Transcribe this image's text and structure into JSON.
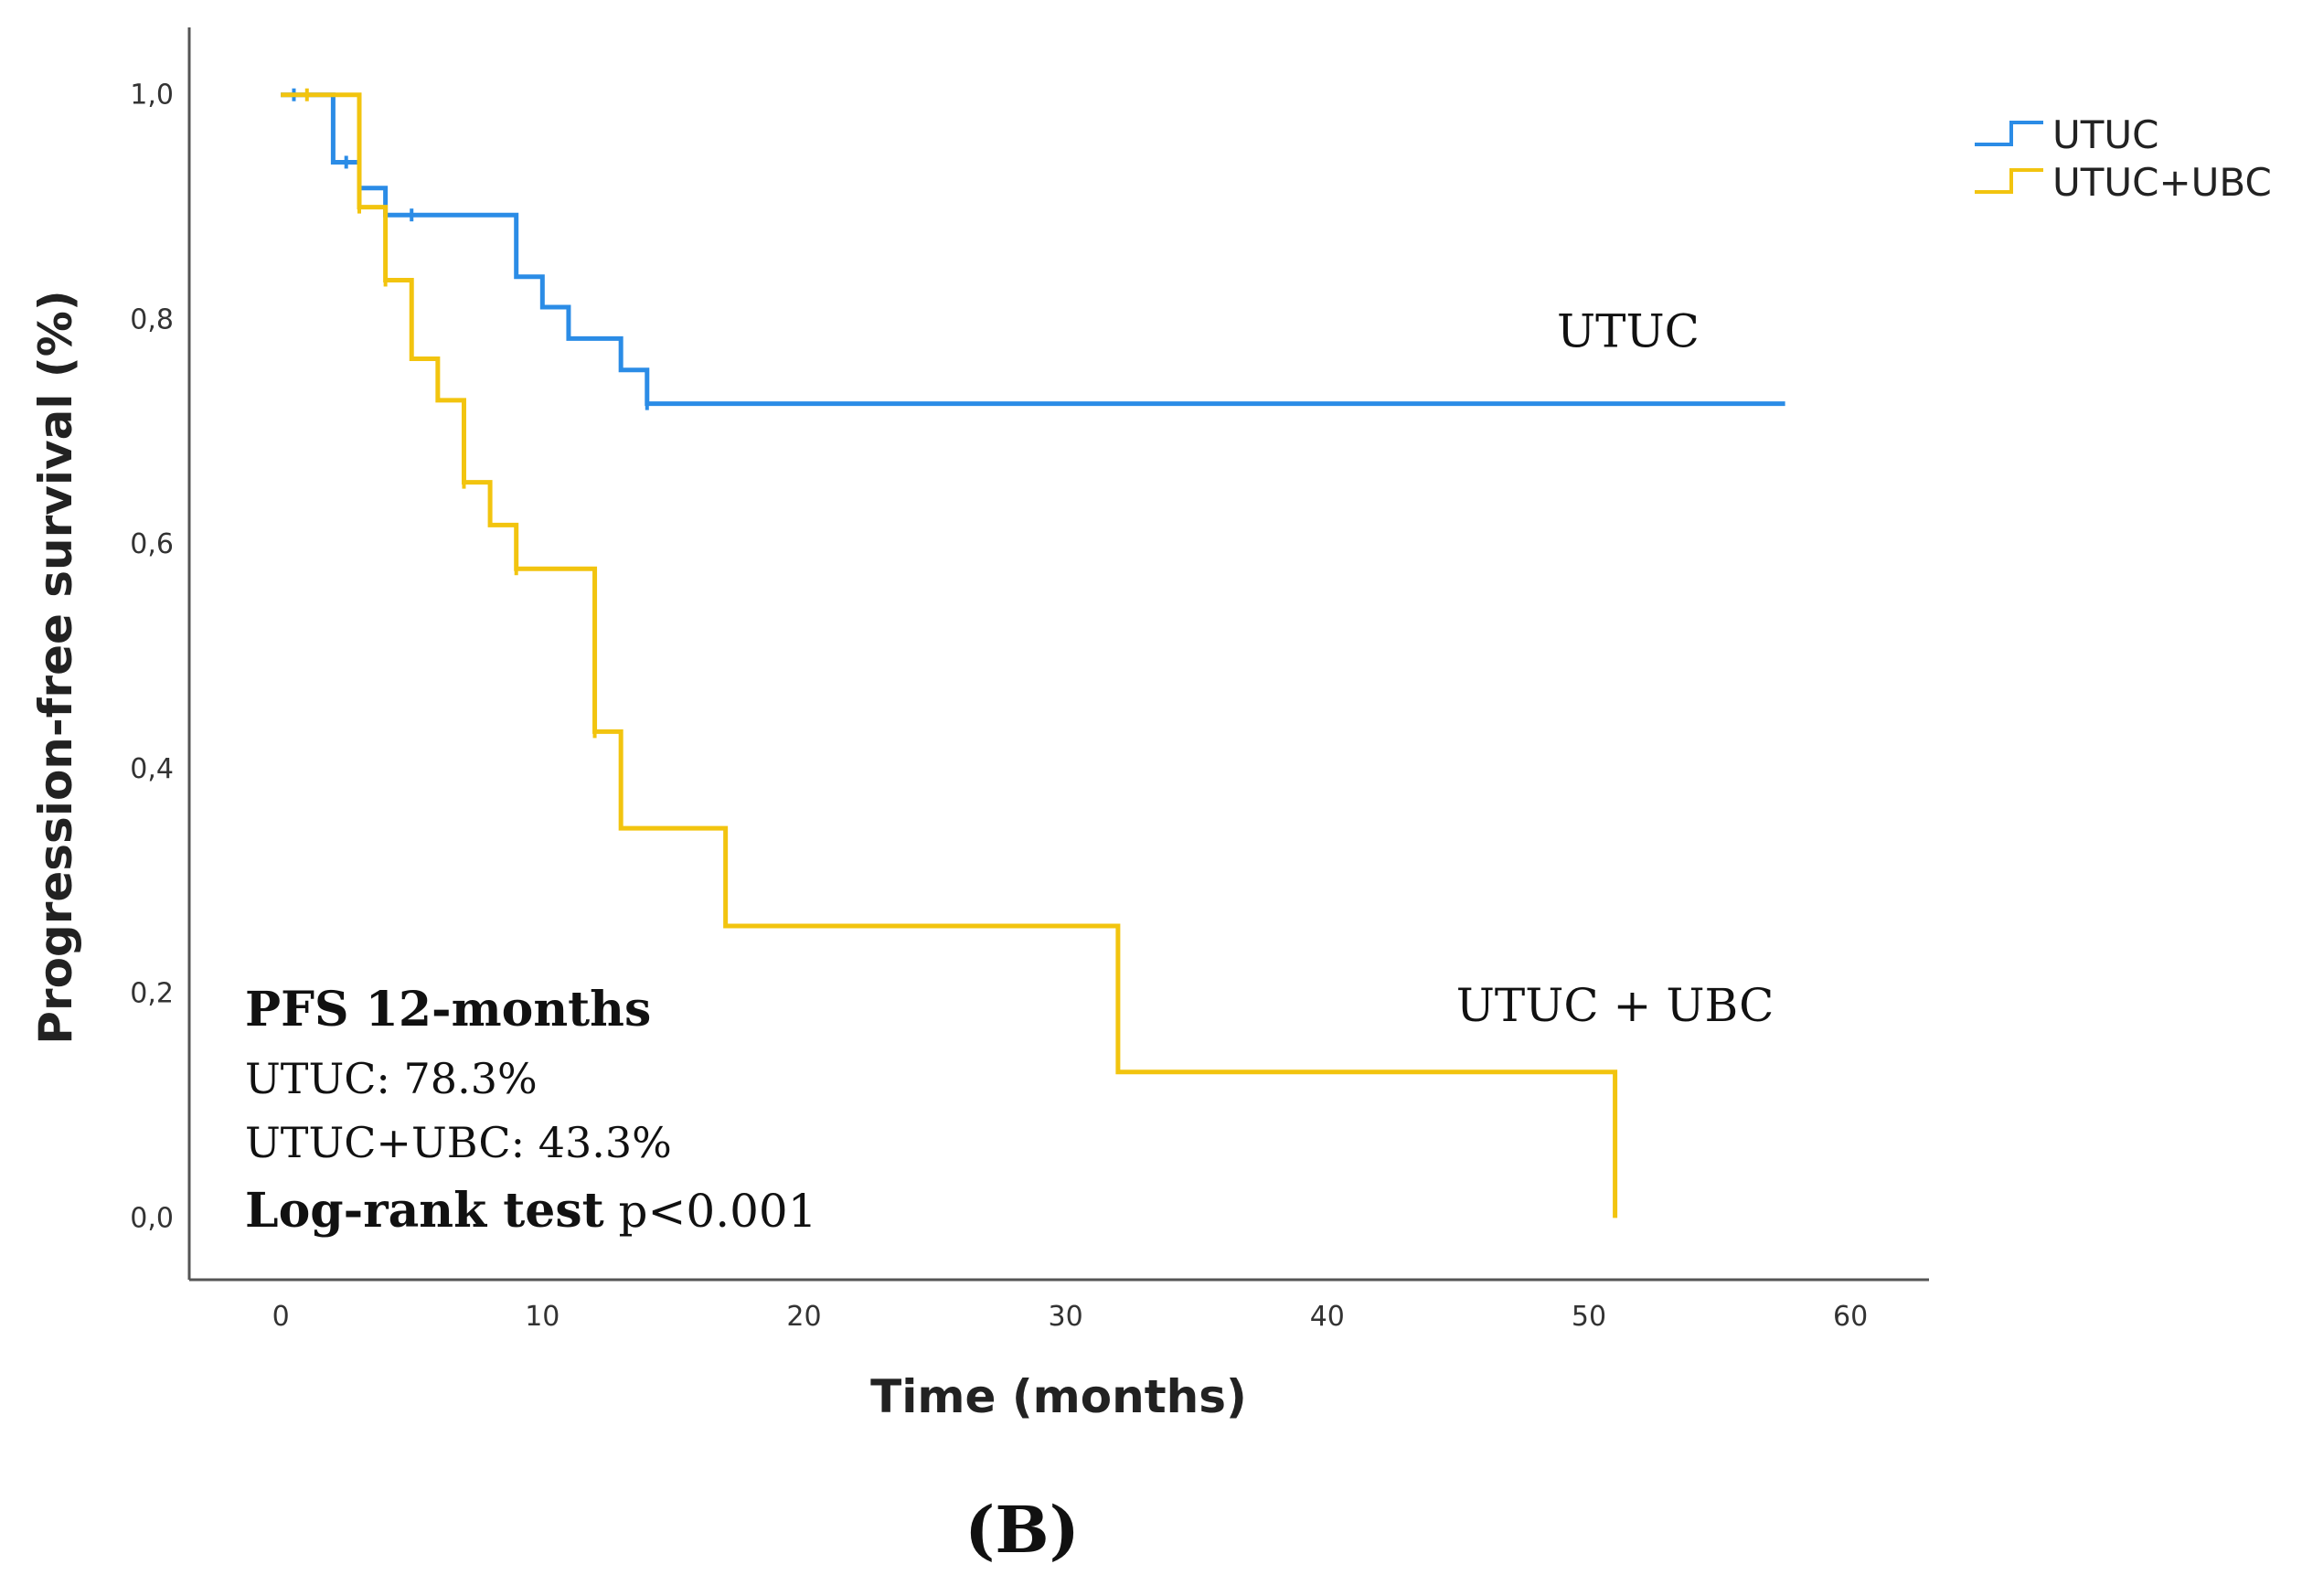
{
  "chart_data": {
    "type": "line",
    "subtype": "kaplan-meier step",
    "xlabel": "Time (months)",
    "ylabel": "Progression-free survival (%)",
    "xlim": [
      -3.5,
      63
    ],
    "ylim": [
      -0.055,
      1.06
    ],
    "xticks": [
      0,
      10,
      20,
      30,
      40,
      50,
      60
    ],
    "xtick_labels": [
      "0",
      "10",
      "20",
      "30",
      "40",
      "50",
      "60"
    ],
    "yticks": [
      0.0,
      0.2,
      0.4,
      0.6,
      0.8,
      1.0
    ],
    "ytick_labels": [
      "0,0",
      "0,2",
      "0,4",
      "0,6",
      "0,8",
      "1,0"
    ],
    "legend_position": "top-right",
    "series": [
      {
        "name": "UTUC",
        "color": "#2b8ce6",
        "steps": [
          [
            0,
            1.0
          ],
          [
            2,
            0.94
          ],
          [
            3,
            0.917
          ],
          [
            4,
            0.893
          ],
          [
            9,
            0.838
          ],
          [
            10,
            0.811
          ],
          [
            11,
            0.783
          ],
          [
            13,
            0.755
          ],
          [
            14,
            0.725
          ],
          [
            57.5,
            0.725
          ]
        ],
        "censored": [
          [
            0.5,
            1.0
          ],
          [
            2.5,
            0.94
          ],
          [
            4,
            0.893
          ],
          [
            5,
            0.893
          ],
          [
            14,
            0.725
          ]
        ]
      },
      {
        "name": "UTUC+UBC",
        "color": "#f2c40f",
        "steps": [
          [
            0,
            1.0
          ],
          [
            3,
            0.9
          ],
          [
            4,
            0.835
          ],
          [
            5,
            0.765
          ],
          [
            6,
            0.728
          ],
          [
            7,
            0.655
          ],
          [
            8,
            0.617
          ],
          [
            9,
            0.578
          ],
          [
            12,
            0.433
          ],
          [
            13,
            0.347
          ],
          [
            17,
            0.26
          ],
          [
            32,
            0.13
          ],
          [
            51,
            0.0
          ]
        ],
        "censored": [
          [
            1,
            1.0
          ],
          [
            3,
            0.9
          ],
          [
            4,
            0.835
          ],
          [
            7,
            0.655
          ],
          [
            9,
            0.578
          ],
          [
            12,
            0.433
          ]
        ]
      }
    ],
    "curve_labels": [
      {
        "text": "UTUC",
        "x": 51.5,
        "y": 0.79
      },
      {
        "text": "UTUC + UBC",
        "x": 51,
        "y": 0.19
      }
    ]
  },
  "legend": {
    "items": [
      {
        "label": "UTUC",
        "color": "#2b8ce6"
      },
      {
        "label": "UTUC+UBC",
        "color": "#f2c40f"
      }
    ]
  },
  "annotation": {
    "title": "PFS 12-months",
    "line1": "UTUC:  78.3%",
    "line2": "UTUC+UBC: 43.3%",
    "logrank_bold": "Log-rank test",
    "logrank_value": " p<0.001"
  },
  "panel_label": "(B)"
}
